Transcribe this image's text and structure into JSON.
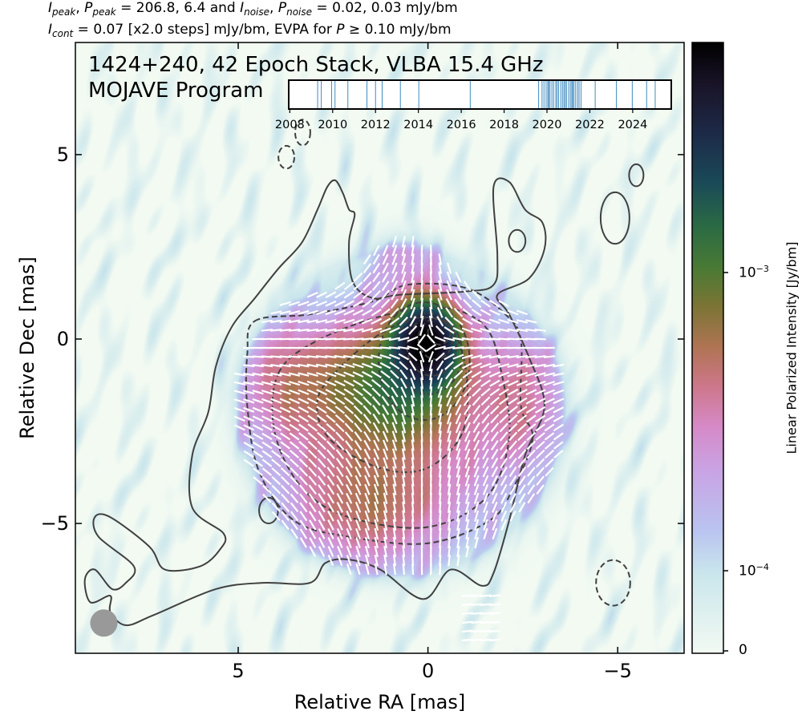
{
  "header": {
    "line1": {
      "I": "I",
      "P": "P",
      "peak": "peak",
      "noise": "noise",
      "sep": ", ",
      "eq": " = ",
      "peak_values": "206.8, 6.4",
      "and": " and ",
      "noise_values": "0.02, 0.03",
      "unit": " mJy/bm"
    },
    "line2": {
      "I": "I",
      "cont": "cont",
      "rest": " = 0.07 [x2.0 steps] mJy/bm, EVPA for ",
      "P": "P",
      "tail": " ≥  0.10 mJy/bm"
    }
  },
  "plot_title": {
    "line1": "1424+240, 42 Epoch Stack, VLBA 15.4 GHz",
    "line2": "MOJAVE Program"
  },
  "colors": {
    "contour": "#404040",
    "evpa": "#ffffff",
    "epoch_line": "#1f77b4",
    "beam": "#999999"
  },
  "chart_data": {
    "type": "heatmap",
    "title": "1424+240, 42 Epoch Stack, VLBA 15.4 GHz",
    "xlabel": "Relative RA [mas]",
    "ylabel": "Relative Dec [mas]",
    "xlim": [
      9.29,
      -6.75
    ],
    "ylim": [
      -8.52,
      8.04
    ],
    "xticks": [
      {
        "v": 5,
        "label": "5"
      },
      {
        "v": 0,
        "label": "0"
      },
      {
        "v": -5,
        "label": "−5"
      }
    ],
    "yticks": [
      {
        "v": 5,
        "label": "5"
      },
      {
        "v": 0,
        "label": "0"
      },
      {
        "v": -5,
        "label": "−5"
      }
    ],
    "colorbar": {
      "label": "Linear Polarized Intensity [Jy/bm]",
      "scale": "symlog",
      "linthresh": 0.0001,
      "vmax": 0.0059,
      "ticks": [
        {
          "v": 0,
          "base": "0",
          "exp": ""
        },
        {
          "v": 0.0001,
          "base": "10",
          "exp": "−4"
        },
        {
          "v": 0.001,
          "base": "10",
          "exp": "−3"
        }
      ],
      "stops": [
        [
          0,
          "#f2faf2"
        ],
        [
          0.13,
          "#cae6ec"
        ],
        [
          0.2,
          "#b9c4f0"
        ],
        [
          0.3,
          "#c9a3e4"
        ],
        [
          0.37,
          "#d68ac8"
        ],
        [
          0.44,
          "#cc7688"
        ],
        [
          0.5,
          "#b07454"
        ],
        [
          0.57,
          "#7a7434"
        ],
        [
          0.63,
          "#4a7a34"
        ],
        [
          0.7,
          "#2a6a44"
        ],
        [
          0.77,
          "#1a4a58"
        ],
        [
          0.85,
          "#1c2a48"
        ],
        [
          0.93,
          "#1a1428"
        ],
        [
          1,
          "#000000"
        ]
      ]
    },
    "polarized_components_jy": [
      {
        "ra": 0.05,
        "dec": -0.15,
        "sx": 0.45,
        "sy": 0.6,
        "peak": 0.0062
      },
      {
        "ra": 0.8,
        "dec": -1.3,
        "sx": 0.9,
        "sy": 0.9,
        "peak": 0.0011
      },
      {
        "ra": 0.7,
        "dec": -2.2,
        "sx": 2.6,
        "sy": 2.5,
        "peak": 0.00032
      },
      {
        "ra": 3.4,
        "dec": -1.2,
        "sx": 1.0,
        "sy": 1.0,
        "peak": 0.00035
      },
      {
        "ra": 1.6,
        "dec": -4.5,
        "sx": 1.2,
        "sy": 1.0,
        "peak": 0.00035
      },
      {
        "ra": -2.5,
        "dec": -1.6,
        "sx": 0.8,
        "sy": 1.2,
        "peak": 0.00022
      },
      {
        "ra": 0.6,
        "dec": 2.5,
        "sx": 0.6,
        "sy": 1.0,
        "peak": 0.00018
      }
    ],
    "evpa_threshold_jy": 0.0001,
    "beam": {
      "ra": 8.54,
      "dec": -7.7,
      "major_mas": 0.72,
      "minor_mas": 0.72
    },
    "contours": [
      {
        "style": "solid",
        "points": [
          [
            2.44,
            4.3
          ],
          [
            2.24,
            3.95
          ],
          [
            2.08,
            3.51
          ],
          [
            1.93,
            3.37
          ],
          [
            2.08,
            2.62
          ],
          [
            1.98,
            1.55
          ],
          [
            1.46,
            1.11
          ],
          [
            0.74,
            1.2
          ],
          [
            -1.01,
            1.29
          ],
          [
            -1.73,
            1.47
          ],
          [
            -1.83,
            2.26
          ],
          [
            -1.73,
            4.13
          ],
          [
            -2.14,
            4.26
          ],
          [
            -2.56,
            3.51
          ],
          [
            -3.02,
            3.15
          ],
          [
            -3.07,
            2.44
          ],
          [
            -2.66,
            1.64
          ],
          [
            -1.83,
            1.2
          ],
          [
            -2.14,
            0.67
          ],
          [
            -2.66,
            -0.49
          ],
          [
            -3.07,
            -1.82
          ],
          [
            -2.56,
            -3.15
          ],
          [
            -2.14,
            -4.92
          ],
          [
            -1.73,
            -6.34
          ],
          [
            -1.42,
            -6.69
          ],
          [
            -0.6,
            -6.25
          ],
          [
            0.12,
            -7.05
          ],
          [
            1.26,
            -6.25
          ],
          [
            2.08,
            -5.98
          ],
          [
            2.7,
            -6.07
          ],
          [
            3.11,
            -6.61
          ],
          [
            4.35,
            -6.61
          ],
          [
            5.59,
            -6.78
          ],
          [
            7.24,
            -7.49
          ],
          [
            7.96,
            -7.76
          ],
          [
            8.37,
            -7.4
          ],
          [
            8.37,
            -6.96
          ],
          [
            8.89,
            -7.14
          ],
          [
            9.04,
            -6.52
          ],
          [
            8.78,
            -6.25
          ],
          [
            8.32,
            -6.78
          ],
          [
            7.96,
            -6.61
          ],
          [
            7.75,
            -6.16
          ],
          [
            8.68,
            -5.36
          ],
          [
            8.78,
            -4.83
          ],
          [
            8.37,
            -4.83
          ],
          [
            7.34,
            -5.63
          ],
          [
            6.93,
            -6.25
          ],
          [
            6.0,
            -6.16
          ],
          [
            5.49,
            -5.72
          ],
          [
            5.38,
            -5.28
          ],
          [
            6.21,
            -4.57
          ],
          [
            6.21,
            -3.15
          ],
          [
            5.79,
            -1.99
          ],
          [
            5.59,
            -0.75
          ],
          [
            5.18,
            0.31
          ],
          [
            4.56,
            1.11
          ],
          [
            3.94,
            1.91
          ],
          [
            3.32,
            2.62
          ],
          [
            2.91,
            3.51
          ],
          [
            2.65,
            4.13
          ]
        ]
      },
      {
        "style": "dashed",
        "points": [
          [
            4.56,
            0.49
          ],
          [
            3.11,
            0.67
          ],
          [
            1.46,
            1.02
          ],
          [
            0.54,
            1.47
          ],
          [
            -1.01,
            1.38
          ],
          [
            -2.04,
            0.67
          ],
          [
            -2.45,
            -0.04
          ],
          [
            -2.45,
            -1.82
          ],
          [
            -2.76,
            -2.7
          ],
          [
            -2.25,
            -4.03
          ],
          [
            -1.63,
            -4.92
          ],
          [
            0.02,
            -5.54
          ],
          [
            2.08,
            -5.36
          ],
          [
            3.53,
            -4.92
          ],
          [
            4.45,
            -3.59
          ],
          [
            4.76,
            -1.82
          ],
          [
            4.76,
            -0.4
          ]
        ]
      },
      {
        "style": "dashed",
        "points": [
          [
            3.94,
            -0.93
          ],
          [
            2.91,
            -0.04
          ],
          [
            1.05,
            0.67
          ],
          [
            -0.49,
            0.84
          ],
          [
            -1.53,
            0.31
          ],
          [
            -1.94,
            -0.93
          ],
          [
            -2.14,
            -2.7
          ],
          [
            -1.53,
            -4.3
          ],
          [
            0.02,
            -5.1
          ],
          [
            2.08,
            -4.83
          ],
          [
            3.32,
            -4.03
          ],
          [
            4.04,
            -2.52
          ]
        ]
      },
      {
        "style": "dashed",
        "points": [
          [
            2.29,
            -0.75
          ],
          [
            1.26,
            0.14
          ],
          [
            0.23,
            0.58
          ],
          [
            -0.6,
            0.31
          ],
          [
            -1.01,
            -0.93
          ],
          [
            -0.91,
            -2.53
          ],
          [
            0.02,
            -3.5
          ],
          [
            1.26,
            -3.5
          ],
          [
            2.6,
            -2.7
          ],
          [
            2.91,
            -1.64
          ]
        ]
      }
    ],
    "ellipse_contours": [
      {
        "style": "dashed",
        "ra": 0.1,
        "dec": -0.6,
        "rx": 1.2,
        "ry": 1.6
      },
      {
        "style": "dashed",
        "ra": 0.0,
        "dec": -0.4,
        "rx": 0.9,
        "ry": 1.1
      },
      {
        "style": "dashed",
        "ra": -0.1,
        "dec": -0.2,
        "rx": 0.65,
        "ry": 0.8
      },
      {
        "style": "dashed",
        "ra": -0.2,
        "dec": 0.0,
        "rx": 0.45,
        "ry": 0.55
      },
      {
        "style": "dashed",
        "ra": -0.3,
        "dec": 0.2,
        "rx": 0.3,
        "ry": 0.35
      },
      {
        "style": "dashed",
        "ra": 3.73,
        "dec": 4.93,
        "rx": 0.21,
        "ry": 0.31
      },
      {
        "style": "dashed",
        "ra": 3.3,
        "dec": 5.6,
        "rx": 0.2,
        "ry": 0.35
      },
      {
        "style": "solid",
        "ra": -5.49,
        "dec": 4.44,
        "rx": 0.19,
        "ry": 0.3
      },
      {
        "style": "solid",
        "ra": -4.93,
        "dec": 3.28,
        "rx": 0.38,
        "ry": 0.7
      },
      {
        "style": "solid",
        "ra": -2.35,
        "dec": 2.66,
        "rx": 0.22,
        "ry": 0.3
      },
      {
        "style": "dashed",
        "ra": -4.88,
        "dec": -6.61,
        "rx": 0.45,
        "ry": 0.62
      },
      {
        "style": "solid",
        "ra": 4.2,
        "dec": -4.65,
        "rx": 0.25,
        "ry": 0.35
      }
    ]
  },
  "timeline": {
    "range": [
      2007.95,
      2025.8
    ],
    "tick_labels": [
      "2008",
      "2010",
      "2012",
      "2014",
      "2016",
      "2018",
      "2020",
      "2022",
      "2024"
    ],
    "epochs": [
      2009.3,
      2009.47,
      2009.95,
      2010.11,
      2010.71,
      2011.6,
      2012.0,
      2012.31,
      2013.16,
      2014.02,
      2016.42,
      2019.61,
      2019.77,
      2019.86,
      2019.96,
      2020.04,
      2020.08,
      2020.14,
      2020.23,
      2020.31,
      2020.41,
      2020.47,
      2020.54,
      2020.64,
      2020.72,
      2020.79,
      2020.85,
      2020.91,
      2021.01,
      2021.09,
      2021.16,
      2021.2,
      2021.26,
      2021.34,
      2021.43,
      2021.5,
      2021.59,
      2022.25,
      2023.24,
      2023.98,
      2024.65,
      2025.05
    ]
  }
}
